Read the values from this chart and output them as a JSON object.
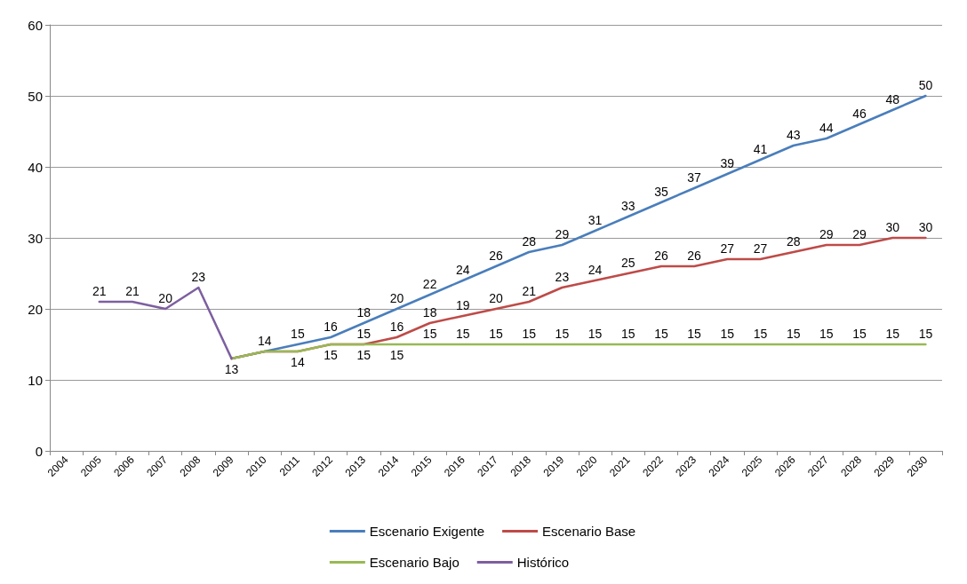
{
  "chart_data": {
    "type": "line",
    "categories": [
      "2004",
      "2005",
      "2006",
      "2007",
      "2008",
      "2009",
      "2010",
      "2011",
      "2012",
      "2013",
      "2014",
      "2015",
      "2016",
      "2017",
      "2018",
      "2019",
      "2020",
      "2021",
      "2022",
      "2023",
      "2024",
      "2025",
      "2026",
      "2027",
      "2028",
      "2029",
      "2030"
    ],
    "series": [
      {
        "name": "Escenario Exigente",
        "color": "#4a7ebb",
        "values": [
          null,
          null,
          null,
          null,
          null,
          13,
          14,
          15,
          16,
          18,
          20,
          22,
          24,
          26,
          28,
          29,
          31,
          33,
          35,
          37,
          39,
          41,
          43,
          44,
          46,
          48,
          50
        ],
        "value_labels": [
          null,
          null,
          null,
          null,
          null,
          null,
          "14",
          "15",
          "16",
          "18",
          "20",
          "22",
          "24",
          "26",
          "28",
          "29",
          "31",
          "33",
          "35",
          "37",
          "39",
          "41",
          "43",
          "44",
          "46",
          "48",
          "50"
        ]
      },
      {
        "name": "Escenario Base",
        "color": "#be4b48",
        "values": [
          null,
          null,
          null,
          null,
          null,
          13,
          14,
          14,
          15,
          15,
          16,
          18,
          19,
          20,
          21,
          23,
          24,
          25,
          26,
          26,
          27,
          27,
          28,
          29,
          29,
          30,
          30
        ],
        "value_labels": [
          null,
          null,
          null,
          null,
          null,
          null,
          null,
          "14",
          "15",
          "15",
          "16",
          "18",
          "19",
          "20",
          "21",
          "23",
          "24",
          "25",
          "26",
          "26",
          "27",
          "27",
          "28",
          "29",
          "29",
          "30",
          "30"
        ]
      },
      {
        "name": "Escenario Bajo",
        "color": "#98b954",
        "values": [
          null,
          null,
          null,
          null,
          null,
          13,
          14,
          14,
          15,
          15,
          15,
          15,
          15,
          15,
          15,
          15,
          15,
          15,
          15,
          15,
          15,
          15,
          15,
          15,
          15,
          15,
          15
        ],
        "value_labels": [
          null,
          null,
          null,
          null,
          null,
          null,
          null,
          null,
          null,
          "15",
          "15",
          "15",
          "15",
          "15",
          "15",
          "15",
          "15",
          "15",
          "15",
          "15",
          "15",
          "15",
          "15",
          "15",
          "15",
          "15",
          "15"
        ]
      },
      {
        "name": "Histórico",
        "color": "#7d5fa0",
        "values": [
          null,
          21,
          21,
          20,
          23,
          13,
          null,
          null,
          null,
          null,
          null,
          null,
          null,
          null,
          null,
          null,
          null,
          null,
          null,
          null,
          null,
          null,
          null,
          null,
          null,
          null,
          null
        ],
        "value_labels": [
          null,
          "21",
          "21",
          "20",
          "23",
          "13",
          null,
          null,
          null,
          null,
          null,
          null,
          null,
          null,
          null,
          null,
          null,
          null,
          null,
          null,
          null,
          null,
          null,
          null,
          null,
          null,
          null
        ]
      }
    ],
    "ylim": [
      0,
      60
    ],
    "yticks": [
      0,
      10,
      20,
      30,
      40,
      50,
      60
    ],
    "grid": "y",
    "legend": "bottom",
    "marker": "none",
    "line_style": "solid"
  }
}
